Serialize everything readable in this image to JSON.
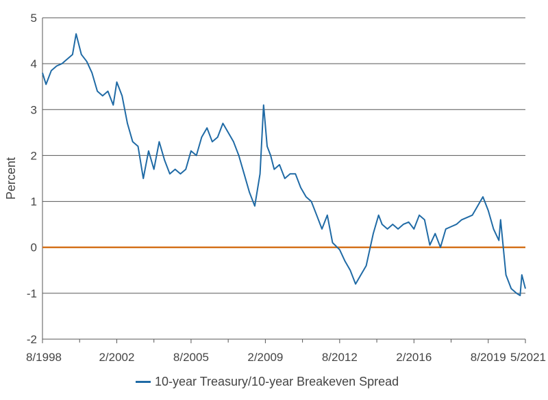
{
  "chart_data": {
    "type": "line",
    "ylabel": "Percent",
    "ylim": [
      -2,
      5
    ],
    "yticks": [
      "5",
      "4",
      "3",
      "2",
      "1",
      "0",
      "-1",
      "-2"
    ],
    "xlim": [
      "1998-08",
      "2021-05"
    ],
    "xticks": [
      "8/1998",
      "2/2002",
      "8/2005",
      "2/2009",
      "8/2012",
      "2/2016",
      "8/2019",
      "5/2021"
    ],
    "grid": true,
    "legend_position": "bottom",
    "zero_line_color": "#d4731e",
    "series": [
      {
        "name": "10-year Treasury/10-year Breakeven Spread",
        "color": "#1f6aa5",
        "x": [
          "1998-08",
          "1998-10",
          "1999-01",
          "1999-04",
          "1999-07",
          "1999-10",
          "2000-01",
          "2000-03",
          "2000-06",
          "2000-09",
          "2000-12",
          "2001-03",
          "2001-06",
          "2001-09",
          "2001-12",
          "2002-02",
          "2002-05",
          "2002-08",
          "2002-11",
          "2003-02",
          "2003-05",
          "2003-08",
          "2003-11",
          "2004-02",
          "2004-05",
          "2004-08",
          "2004-11",
          "2005-02",
          "2005-05",
          "2005-08",
          "2005-11",
          "2006-02",
          "2006-05",
          "2006-08",
          "2006-11",
          "2007-02",
          "2007-05",
          "2007-08",
          "2007-11",
          "2008-02",
          "2008-05",
          "2008-08",
          "2008-11",
          "2009-01",
          "2009-03",
          "2009-05",
          "2009-07",
          "2009-10",
          "2010-01",
          "2010-04",
          "2010-07",
          "2010-10",
          "2011-01",
          "2011-04",
          "2011-07",
          "2011-10",
          "2012-01",
          "2012-04",
          "2012-08",
          "2012-11",
          "2013-02",
          "2013-05",
          "2013-08",
          "2013-11",
          "2014-03",
          "2014-06",
          "2014-08",
          "2014-11",
          "2015-02",
          "2015-05",
          "2015-08",
          "2015-11",
          "2016-02",
          "2016-05",
          "2016-08",
          "2016-11",
          "2017-02",
          "2017-05",
          "2017-08",
          "2017-11",
          "2018-02",
          "2018-05",
          "2018-08",
          "2018-11",
          "2019-02",
          "2019-05",
          "2019-08",
          "2019-11",
          "2020-02",
          "2020-03",
          "2020-06",
          "2020-09",
          "2020-12",
          "2021-02",
          "2021-03",
          "2021-05"
        ],
        "values": [
          3.8,
          3.55,
          3.85,
          3.95,
          4.0,
          4.1,
          4.2,
          4.65,
          4.2,
          4.05,
          3.8,
          3.4,
          3.3,
          3.4,
          3.1,
          3.6,
          3.3,
          2.7,
          2.3,
          2.2,
          1.5,
          2.1,
          1.7,
          2.3,
          1.9,
          1.6,
          1.7,
          1.6,
          1.7,
          2.1,
          2.0,
          2.4,
          2.6,
          2.3,
          2.4,
          2.7,
          2.5,
          2.3,
          2.0,
          1.6,
          1.2,
          0.9,
          1.6,
          3.1,
          2.2,
          2.0,
          1.7,
          1.8,
          1.5,
          1.6,
          1.6,
          1.3,
          1.1,
          1.0,
          0.7,
          0.4,
          0.7,
          0.1,
          -0.05,
          -0.3,
          -0.5,
          -0.8,
          -0.6,
          -0.4,
          0.3,
          0.7,
          0.5,
          0.4,
          0.5,
          0.4,
          0.5,
          0.55,
          0.4,
          0.7,
          0.6,
          0.05,
          0.3,
          0.0,
          0.4,
          0.45,
          0.5,
          0.6,
          0.65,
          0.7,
          0.9,
          1.1,
          0.8,
          0.4,
          0.15,
          0.6,
          -0.6,
          -0.9,
          -1.0,
          -1.05,
          -0.6,
          -0.9
        ]
      }
    ]
  }
}
